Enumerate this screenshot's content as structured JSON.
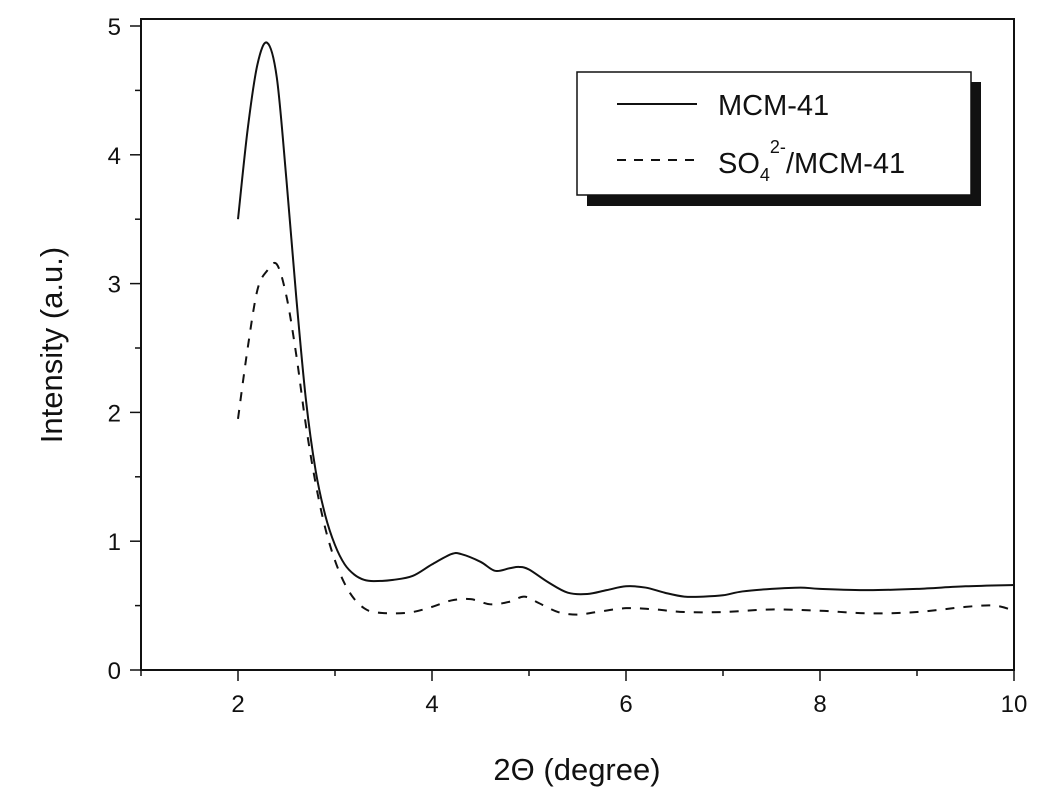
{
  "chart_data": {
    "type": "line",
    "title": "",
    "xlabel": "2Θ (degree)",
    "ylabel": "Intensity (a.u.)",
    "xlim": [
      1,
      10
    ],
    "ylim": [
      0,
      5
    ],
    "xticks": [
      2,
      4,
      6,
      8,
      10
    ],
    "xtick_labels": [
      "2",
      "4",
      "6",
      "8",
      "10"
    ],
    "yticks": [
      0,
      1,
      2,
      3,
      4,
      5
    ],
    "ytick_labels": [
      "0",
      "1",
      "2",
      "3",
      "4",
      "5"
    ],
    "grid": false,
    "legend_position": "top-right",
    "legend": {
      "entries": [
        {
          "label": "MCM-41",
          "style": "solid"
        },
        {
          "label_main": "SO",
          "label_sub": "4",
          "label_sup": "2-",
          "label_rest": "/MCM-41",
          "label": "SO4 2-/MCM-41",
          "style": "dashed"
        }
      ]
    },
    "series": [
      {
        "name": "MCM-41",
        "style": "solid",
        "color": "#111111",
        "x": [
          2.0,
          2.1,
          2.2,
          2.3,
          2.4,
          2.5,
          2.6,
          2.7,
          2.8,
          2.9,
          3.0,
          3.1,
          3.2,
          3.3,
          3.4,
          3.6,
          3.8,
          4.0,
          4.2,
          4.3,
          4.5,
          4.65,
          4.8,
          4.9,
          5.0,
          5.2,
          5.4,
          5.6,
          5.8,
          6.0,
          6.2,
          6.4,
          6.6,
          6.8,
          7.0,
          7.2,
          7.5,
          7.8,
          8.0,
          8.5,
          9.0,
          9.5,
          10.0
        ],
        "y": [
          3.5,
          4.2,
          4.7,
          4.87,
          4.6,
          3.8,
          2.9,
          2.1,
          1.55,
          1.2,
          0.97,
          0.82,
          0.74,
          0.7,
          0.69,
          0.7,
          0.73,
          0.82,
          0.9,
          0.9,
          0.84,
          0.77,
          0.79,
          0.8,
          0.78,
          0.68,
          0.6,
          0.59,
          0.62,
          0.65,
          0.64,
          0.6,
          0.57,
          0.57,
          0.58,
          0.61,
          0.63,
          0.64,
          0.63,
          0.62,
          0.63,
          0.65,
          0.66
        ]
      },
      {
        "name": "SO4 2-/MCM-41",
        "style": "dashed",
        "color": "#111111",
        "x": [
          2.0,
          2.1,
          2.2,
          2.3,
          2.4,
          2.5,
          2.6,
          2.7,
          2.8,
          2.9,
          3.0,
          3.1,
          3.2,
          3.3,
          3.4,
          3.6,
          3.8,
          4.0,
          4.2,
          4.4,
          4.6,
          4.8,
          4.95,
          5.1,
          5.3,
          5.5,
          5.7,
          6.0,
          6.3,
          6.6,
          7.0,
          7.5,
          8.0,
          8.5,
          9.0,
          9.5,
          9.8,
          10.0
        ],
        "y": [
          1.95,
          2.5,
          2.95,
          3.1,
          3.15,
          2.9,
          2.45,
          1.9,
          1.45,
          1.1,
          0.85,
          0.67,
          0.55,
          0.48,
          0.45,
          0.44,
          0.45,
          0.49,
          0.54,
          0.55,
          0.51,
          0.53,
          0.57,
          0.52,
          0.45,
          0.43,
          0.45,
          0.48,
          0.47,
          0.45,
          0.45,
          0.47,
          0.46,
          0.44,
          0.45,
          0.49,
          0.5,
          0.46
        ]
      }
    ]
  }
}
